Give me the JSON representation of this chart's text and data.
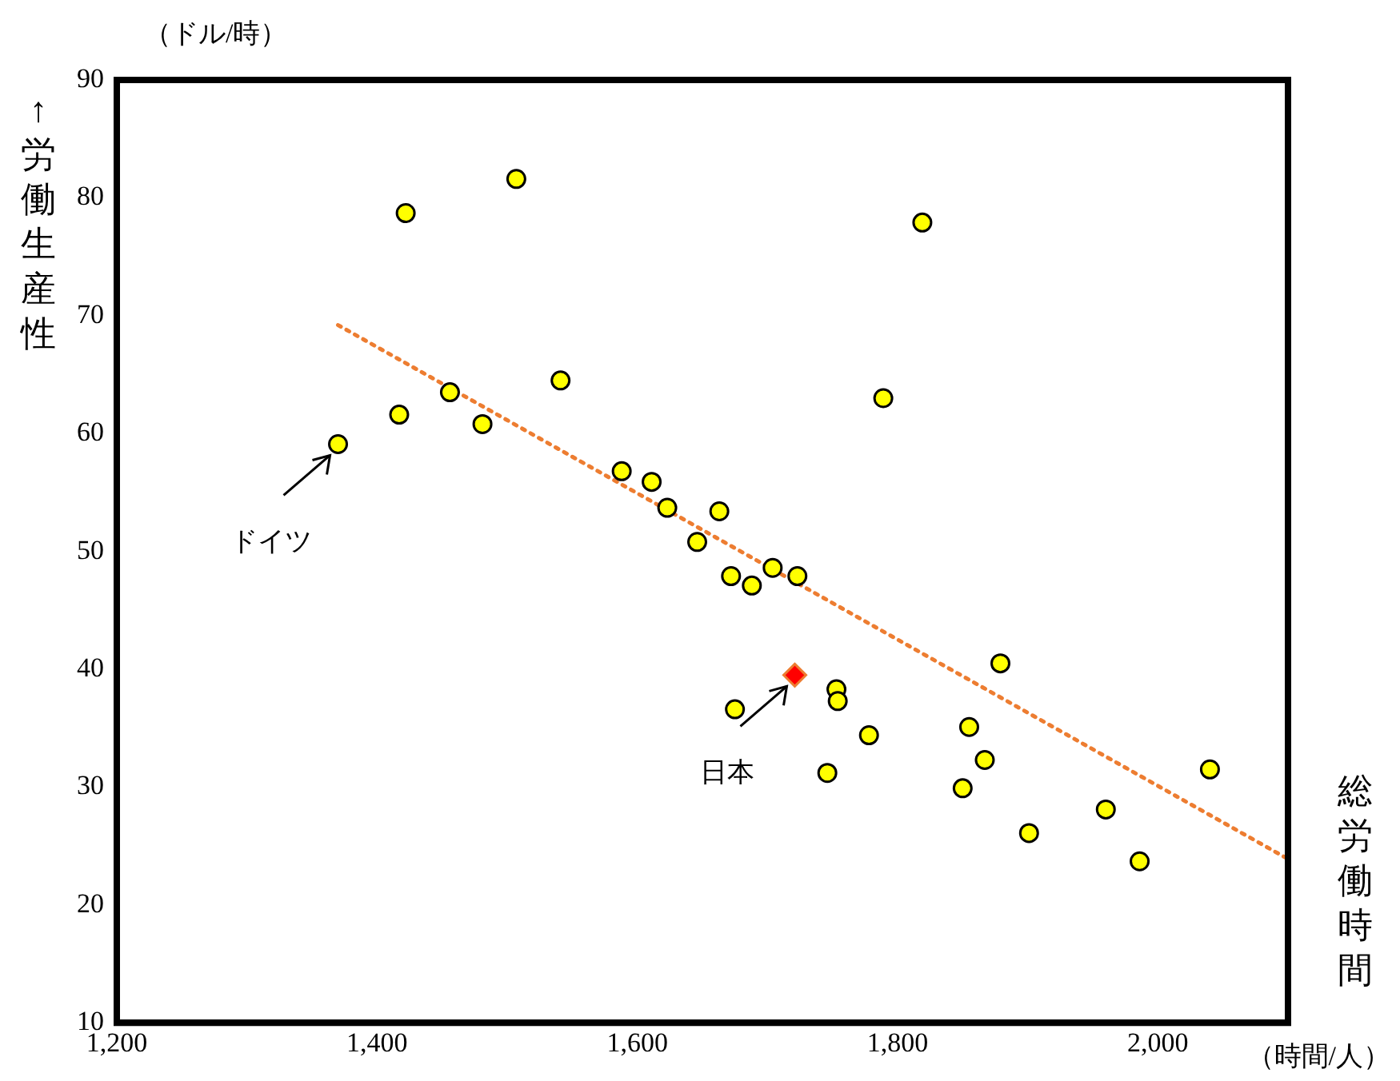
{
  "chart_data": {
    "type": "scatter",
    "xlabel": "総労働時間",
    "ylabel": "↑労働生産性",
    "xlim": [
      1200,
      2100
    ],
    "ylim": [
      10,
      90
    ],
    "xticks": [
      {
        "value": 1200,
        "label": "1,200"
      },
      {
        "value": 1400,
        "label": "1,400"
      },
      {
        "value": 1600,
        "label": "1,600"
      },
      {
        "value": 1800,
        "label": "1,800"
      },
      {
        "value": 2000,
        "label": "2,000"
      }
    ],
    "yticks": [
      10,
      20,
      30,
      40,
      50,
      60,
      70,
      80,
      90
    ],
    "grid": false,
    "legend": false,
    "annotations": [
      {
        "text": "ドイツ",
        "x": 1370,
        "y": 59.1
      },
      {
        "text": "日本",
        "x": 1721,
        "y": 39.5
      },
      "（ドル/時）",
      "（時間/人）"
    ],
    "series": [
      {
        "type": "scatter",
        "color": "#ffff00",
        "marker": "circle",
        "x": [
          1370,
          1422,
          1417,
          1456,
          1481,
          1507,
          1541,
          1588,
          1611,
          1623,
          1663,
          1646,
          1672,
          1688,
          1704,
          1723,
          1819,
          1789,
          1675,
          1753,
          1754,
          1778,
          1746,
          1879,
          1855,
          1867,
          1850,
          1901,
          1960,
          1986,
          2040
        ],
        "values": [
          59.1,
          78.7,
          61.6,
          63.5,
          60.8,
          81.6,
          64.5,
          56.8,
          55.9,
          53.7,
          53.4,
          50.8,
          47.9,
          47.1,
          48.6,
          47.9,
          77.9,
          63.0,
          36.6,
          38.3,
          37.3,
          34.4,
          31.2,
          40.5,
          35.1,
          32.3,
          29.9,
          26.1,
          28.1,
          23.7,
          31.5
        ]
      },
      {
        "type": "scatter",
        "color": "#ff0000",
        "marker": "diamond",
        "x": [
          1721
        ],
        "values": [
          39.5
        ]
      },
      {
        "type": "line",
        "color": "#ed7d31",
        "marker": "none",
        "line_style": "dotted",
        "x": [
          1370,
          2100
        ],
        "values": [
          69.2,
          23.9
        ]
      }
    ]
  }
}
